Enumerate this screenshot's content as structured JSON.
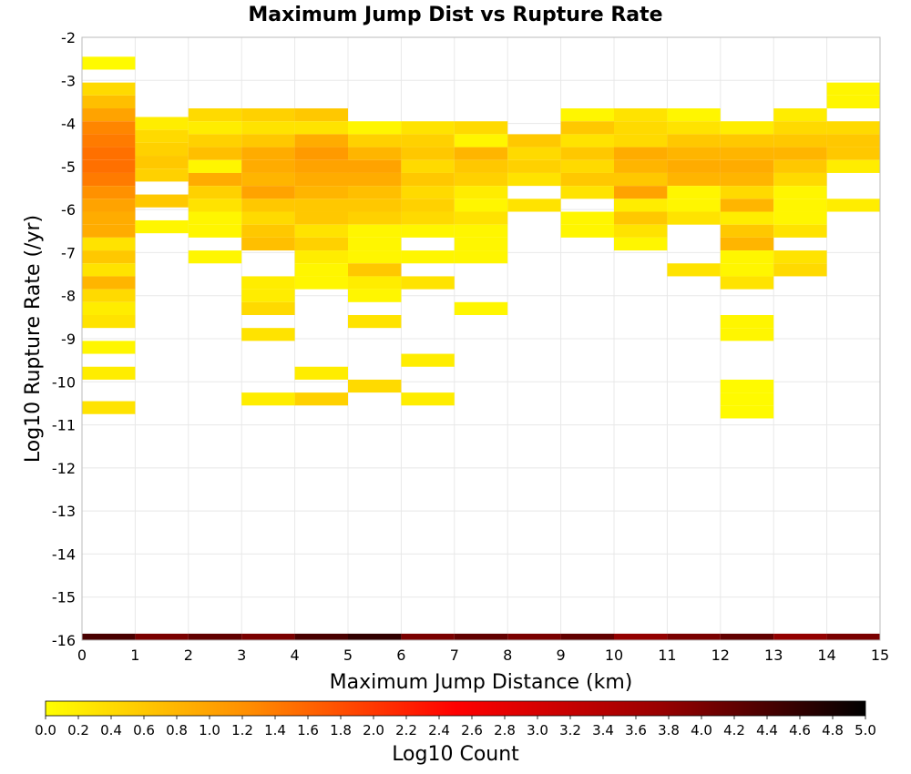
{
  "chart_data": {
    "type": "heatmap",
    "title": "Maximum Jump Dist vs Rupture Rate",
    "xlabel": "Maximum Jump Distance (km)",
    "ylabel": "Log10 Rupture Rate (/yr)",
    "xlim": [
      0,
      15
    ],
    "ylim": [
      -16,
      -2
    ],
    "x_ticks": [
      0,
      1,
      2,
      3,
      4,
      5,
      6,
      7,
      8,
      9,
      10,
      11,
      12,
      13,
      14,
      15
    ],
    "y_ticks": [
      -2,
      -3,
      -4,
      -5,
      -6,
      -7,
      -8,
      -9,
      -10,
      -11,
      -12,
      -13,
      -14,
      -15,
      -16
    ],
    "cell_width": 1,
    "cell_height": 0.3,
    "grid": true,
    "colorbar": {
      "label": "Log10 Count",
      "range": [
        0,
        5
      ],
      "ticks": [
        "0.0",
        "0.2",
        "0.4",
        "0.6",
        "0.8",
        "1.0",
        "1.2",
        "1.4",
        "1.6",
        "1.8",
        "2.0",
        "2.2",
        "2.4",
        "2.6",
        "2.8",
        "3.0",
        "3.2",
        "3.4",
        "3.6",
        "3.8",
        "4.0",
        "4.2",
        "4.4",
        "4.6",
        "4.8",
        "5.0"
      ],
      "colors": [
        "#ffff00",
        "#ff8c00",
        "#ff0000",
        "#990000",
        "#000000"
      ]
    },
    "cells": [
      [
        0,
        -2.6,
        0.05
      ],
      [
        0,
        -3.2,
        0.4
      ],
      [
        0,
        -3.5,
        0.7
      ],
      [
        0,
        -3.8,
        1.0
      ],
      [
        0,
        -4.1,
        1.3
      ],
      [
        0,
        -4.4,
        1.4
      ],
      [
        0,
        -4.7,
        1.5
      ],
      [
        0,
        -5.0,
        1.5
      ],
      [
        0,
        -5.3,
        1.4
      ],
      [
        0,
        -5.6,
        1.2
      ],
      [
        0,
        -5.9,
        1.0
      ],
      [
        0,
        -6.2,
        0.9
      ],
      [
        0,
        -6.5,
        0.9
      ],
      [
        0,
        -6.8,
        0.3
      ],
      [
        0,
        -7.1,
        0.6
      ],
      [
        0,
        -7.4,
        0.3
      ],
      [
        0,
        -7.7,
        0.8
      ],
      [
        0,
        -8.0,
        0.4
      ],
      [
        0,
        -8.3,
        0.2
      ],
      [
        0,
        -8.6,
        0.3
      ],
      [
        0,
        -9.2,
        0.1
      ],
      [
        0,
        -9.8,
        0.2
      ],
      [
        0,
        -10.6,
        0.3
      ],
      [
        0,
        -16.0,
        4.4
      ],
      [
        1,
        -4.0,
        0.2
      ],
      [
        1,
        -4.3,
        0.4
      ],
      [
        1,
        -4.6,
        0.5
      ],
      [
        1,
        -4.9,
        0.6
      ],
      [
        1,
        -5.2,
        0.5
      ],
      [
        1,
        -5.8,
        0.6
      ],
      [
        1,
        -6.4,
        0.1
      ],
      [
        1,
        -16.0,
        4.0
      ],
      [
        2,
        -3.8,
        0.4
      ],
      [
        2,
        -4.1,
        0.2
      ],
      [
        2,
        -4.4,
        0.5
      ],
      [
        2,
        -4.7,
        0.7
      ],
      [
        2,
        -5.0,
        0.1
      ],
      [
        2,
        -5.3,
        0.9
      ],
      [
        2,
        -5.6,
        0.5
      ],
      [
        2,
        -5.9,
        0.3
      ],
      [
        2,
        -6.2,
        0.1
      ],
      [
        2,
        -6.5,
        0.1
      ],
      [
        2,
        -7.1,
        0.1
      ],
      [
        2,
        -16.0,
        4.2
      ],
      [
        3,
        -3.8,
        0.5
      ],
      [
        3,
        -4.1,
        0.3
      ],
      [
        3,
        -4.4,
        0.6
      ],
      [
        3,
        -4.7,
        0.9
      ],
      [
        3,
        -5.0,
        0.9
      ],
      [
        3,
        -5.3,
        0.8
      ],
      [
        3,
        -5.6,
        1.0
      ],
      [
        3,
        -5.9,
        0.6
      ],
      [
        3,
        -6.2,
        0.4
      ],
      [
        3,
        -6.5,
        0.6
      ],
      [
        3,
        -6.8,
        0.7
      ],
      [
        3,
        -7.7,
        0.2
      ],
      [
        3,
        -8.0,
        0.2
      ],
      [
        3,
        -8.3,
        0.4
      ],
      [
        3,
        -8.9,
        0.3
      ],
      [
        3,
        -10.4,
        0.2
      ],
      [
        3,
        -16.0,
        4.0
      ],
      [
        4,
        -3.8,
        0.6
      ],
      [
        4,
        -4.1,
        0.3
      ],
      [
        4,
        -4.4,
        0.9
      ],
      [
        4,
        -4.7,
        1.1
      ],
      [
        4,
        -5.0,
        1.0
      ],
      [
        4,
        -5.3,
        0.9
      ],
      [
        4,
        -5.6,
        0.8
      ],
      [
        4,
        -5.9,
        0.6
      ],
      [
        4,
        -6.2,
        0.6
      ],
      [
        4,
        -6.5,
        0.3
      ],
      [
        4,
        -6.8,
        0.5
      ],
      [
        4,
        -7.1,
        0.2
      ],
      [
        4,
        -7.4,
        0.1
      ],
      [
        4,
        -7.7,
        0.1
      ],
      [
        4,
        -9.8,
        0.2
      ],
      [
        4,
        -10.4,
        0.5
      ],
      [
        4,
        -16.0,
        4.4
      ],
      [
        5,
        -4.1,
        0.1
      ],
      [
        5,
        -4.4,
        0.5
      ],
      [
        5,
        -4.7,
        0.8
      ],
      [
        5,
        -5.0,
        1.0
      ],
      [
        5,
        -5.3,
        0.9
      ],
      [
        5,
        -5.6,
        0.7
      ],
      [
        5,
        -5.9,
        0.6
      ],
      [
        5,
        -6.2,
        0.5
      ],
      [
        5,
        -6.5,
        0.1
      ],
      [
        5,
        -6.8,
        0.1
      ],
      [
        5,
        -7.1,
        0.1
      ],
      [
        5,
        -7.4,
        0.6
      ],
      [
        5,
        -7.7,
        0.2
      ],
      [
        5,
        -8.0,
        0.1
      ],
      [
        5,
        -8.6,
        0.3
      ],
      [
        5,
        -10.1,
        0.4
      ],
      [
        5,
        -16.0,
        4.6
      ],
      [
        6,
        -4.1,
        0.3
      ],
      [
        6,
        -4.4,
        0.5
      ],
      [
        6,
        -4.7,
        0.6
      ],
      [
        6,
        -5.0,
        0.4
      ],
      [
        6,
        -5.3,
        0.6
      ],
      [
        6,
        -5.6,
        0.4
      ],
      [
        6,
        -5.9,
        0.5
      ],
      [
        6,
        -6.2,
        0.4
      ],
      [
        6,
        -6.5,
        0.1
      ],
      [
        6,
        -7.1,
        0.1
      ],
      [
        6,
        -7.7,
        0.3
      ],
      [
        6,
        -9.5,
        0.2
      ],
      [
        6,
        -10.4,
        0.2
      ],
      [
        6,
        -16.0,
        4.0
      ],
      [
        7,
        -4.1,
        0.4
      ],
      [
        7,
        -4.4,
        0.1
      ],
      [
        7,
        -4.7,
        0.8
      ],
      [
        7,
        -5.0,
        0.6
      ],
      [
        7,
        -5.3,
        0.5
      ],
      [
        7,
        -5.6,
        0.2
      ],
      [
        7,
        -5.9,
        0.1
      ],
      [
        7,
        -6.2,
        0.3
      ],
      [
        7,
        -6.5,
        0.1
      ],
      [
        7,
        -6.8,
        0.1
      ],
      [
        7,
        -7.1,
        0.1
      ],
      [
        7,
        -8.3,
        0.1
      ],
      [
        7,
        -16.0,
        4.2
      ],
      [
        8,
        -4.4,
        0.6
      ],
      [
        8,
        -4.7,
        0.4
      ],
      [
        8,
        -5.0,
        0.5
      ],
      [
        8,
        -5.3,
        0.3
      ],
      [
        8,
        -5.9,
        0.3
      ],
      [
        8,
        -16.0,
        4.0
      ],
      [
        9,
        -3.8,
        0.1
      ],
      [
        9,
        -4.1,
        0.6
      ],
      [
        9,
        -4.4,
        0.3
      ],
      [
        9,
        -4.7,
        0.6
      ],
      [
        9,
        -5.0,
        0.4
      ],
      [
        9,
        -5.3,
        0.6
      ],
      [
        9,
        -5.6,
        0.3
      ],
      [
        9,
        -6.2,
        0.1
      ],
      [
        9,
        -6.5,
        0.1
      ],
      [
        9,
        -16.0,
        4.2
      ],
      [
        10,
        -3.8,
        0.3
      ],
      [
        10,
        -4.1,
        0.4
      ],
      [
        10,
        -4.4,
        0.4
      ],
      [
        10,
        -4.7,
        0.9
      ],
      [
        10,
        -5.0,
        0.8
      ],
      [
        10,
        -5.3,
        0.6
      ],
      [
        10,
        -5.6,
        1.0
      ],
      [
        10,
        -5.9,
        0.2
      ],
      [
        10,
        -6.2,
        0.6
      ],
      [
        10,
        -6.5,
        0.3
      ],
      [
        10,
        -6.8,
        0.1
      ],
      [
        10,
        -16.0,
        3.8
      ],
      [
        11,
        -3.8,
        0.1
      ],
      [
        11,
        -4.1,
        0.3
      ],
      [
        11,
        -4.4,
        0.6
      ],
      [
        11,
        -4.7,
        0.8
      ],
      [
        11,
        -5.0,
        0.9
      ],
      [
        11,
        -5.3,
        0.8
      ],
      [
        11,
        -5.6,
        0.1
      ],
      [
        11,
        -5.9,
        0.1
      ],
      [
        11,
        -6.2,
        0.3
      ],
      [
        11,
        -7.4,
        0.3
      ],
      [
        11,
        -16.0,
        4.0
      ],
      [
        12,
        -4.1,
        0.2
      ],
      [
        12,
        -4.4,
        0.6
      ],
      [
        12,
        -4.7,
        0.8
      ],
      [
        12,
        -5.0,
        0.9
      ],
      [
        12,
        -5.3,
        0.8
      ],
      [
        12,
        -5.6,
        0.4
      ],
      [
        12,
        -5.9,
        0.8
      ],
      [
        12,
        -6.2,
        0.2
      ],
      [
        12,
        -6.5,
        0.6
      ],
      [
        12,
        -6.8,
        0.8
      ],
      [
        12,
        -7.1,
        0.1
      ],
      [
        12,
        -7.4,
        0.1
      ],
      [
        12,
        -7.7,
        0.3
      ],
      [
        12,
        -8.6,
        0.1
      ],
      [
        12,
        -8.9,
        0.1
      ],
      [
        12,
        -10.1,
        0.05
      ],
      [
        12,
        -10.4,
        0.05
      ],
      [
        12,
        -10.7,
        0.05
      ],
      [
        12,
        -16.0,
        4.2
      ],
      [
        13,
        -3.8,
        0.2
      ],
      [
        13,
        -4.1,
        0.4
      ],
      [
        13,
        -4.4,
        0.6
      ],
      [
        13,
        -4.7,
        0.8
      ],
      [
        13,
        -5.0,
        0.6
      ],
      [
        13,
        -5.3,
        0.4
      ],
      [
        13,
        -5.6,
        0.1
      ],
      [
        13,
        -5.9,
        0.1
      ],
      [
        13,
        -6.2,
        0.1
      ],
      [
        13,
        -6.5,
        0.3
      ],
      [
        13,
        -7.1,
        0.3
      ],
      [
        13,
        -7.4,
        0.4
      ],
      [
        13,
        -16.0,
        3.8
      ],
      [
        14,
        -3.2,
        0.1
      ],
      [
        14,
        -3.5,
        0.1
      ],
      [
        14,
        -4.1,
        0.4
      ],
      [
        14,
        -4.4,
        0.6
      ],
      [
        14,
        -4.7,
        0.6
      ],
      [
        14,
        -5.0,
        0.2
      ],
      [
        14,
        -5.9,
        0.2
      ],
      [
        14,
        -16.0,
        4.0
      ]
    ]
  }
}
